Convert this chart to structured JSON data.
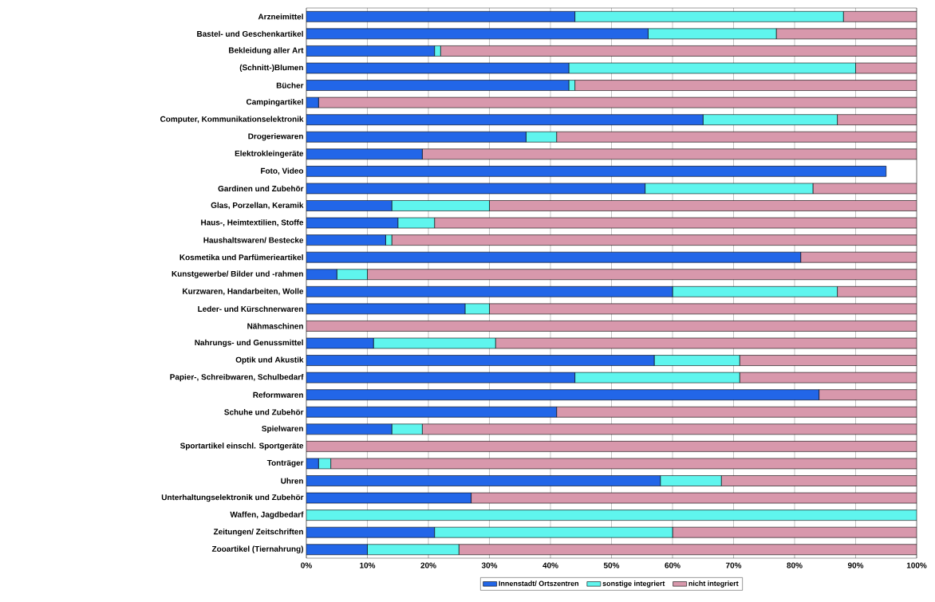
{
  "chart_data": {
    "type": "bar",
    "orientation": "horizontal",
    "stacked": true,
    "grid": "x",
    "legend": "bottom",
    "categories": [
      "Arzneimittel",
      "Bastel- und Geschenkartikel",
      "Bekleidung aller Art",
      "(Schnitt-)Blumen",
      "Bücher",
      "Campingartikel",
      "Computer, Kommunikationselektronik",
      "Drogeriewaren",
      "Elektrokleingeräte",
      "Foto, Video",
      "Gardinen und Zubehör",
      "Glas, Porzellan, Keramik",
      "Haus-, Heimtextilien, Stoffe",
      "Haushaltswaren/ Bestecke",
      "Kosmetika und Parfümerieartikel",
      "Kunstgewerbe/ Bilder und -rahmen",
      "Kurzwaren, Handarbeiten, Wolle",
      "Leder- und Kürschnerwaren",
      "Nähmaschinen",
      "Nahrungs- und Genussmittel",
      "Optik und Akustik",
      "Papier-, Schreibwaren, Schulbedarf",
      "Reformwaren",
      "Schuhe und Zubehör",
      "Spielwaren",
      "Sportartikel einschl. Sportgeräte",
      "Tonträger",
      "Uhren",
      "Unterhaltungselektronik und Zubehör",
      "Waffen, Jagdbedarf",
      "Zeitungen/ Zeitschriften",
      "Zooartikel (Tiernahrung)"
    ],
    "series": [
      {
        "name": "Innenstadt/ Ortszentren",
        "color": "#2266e8",
        "values": [
          44,
          56,
          21,
          43,
          43,
          2,
          65,
          36,
          19,
          95,
          55.5,
          14,
          15,
          13,
          81,
          5,
          60,
          26,
          0,
          11,
          57,
          44,
          84,
          41,
          14,
          0,
          2,
          58,
          27,
          0,
          21,
          10
        ]
      },
      {
        "name": "sonstige integriert",
        "color": "#5ff5ee",
        "values": [
          44,
          21,
          1,
          47,
          1,
          0,
          22,
          5,
          0,
          0,
          27.5,
          16,
          6,
          1,
          0,
          5,
          27,
          4,
          0,
          20,
          14,
          27,
          0,
          0,
          5,
          0,
          2,
          10,
          0,
          100,
          39,
          15
        ]
      },
      {
        "name": "nicht integriert",
        "color": "#d898ac",
        "values": [
          12,
          23,
          78,
          10,
          56,
          98,
          13,
          59,
          81,
          0,
          17,
          70,
          79,
          86,
          19,
          90,
          13,
          70,
          100,
          69,
          29,
          29,
          16,
          59,
          81,
          100,
          96,
          32,
          73,
          0,
          40,
          75
        ]
      }
    ],
    "xlim": [
      0,
      100
    ],
    "xticks": [
      {
        "value": 0,
        "label": "0%"
      },
      {
        "value": 10,
        "label": "10%"
      },
      {
        "value": 20,
        "label": "20%"
      },
      {
        "value": 30,
        "label": "30%"
      },
      {
        "value": 40,
        "label": "40%"
      },
      {
        "value": 50,
        "label": "50%"
      },
      {
        "value": 60,
        "label": "60%"
      },
      {
        "value": 70,
        "label": "70%"
      },
      {
        "value": 80,
        "label": "80%"
      },
      {
        "value": 90,
        "label": "90%"
      },
      {
        "value": 100,
        "label": "100%"
      }
    ]
  }
}
